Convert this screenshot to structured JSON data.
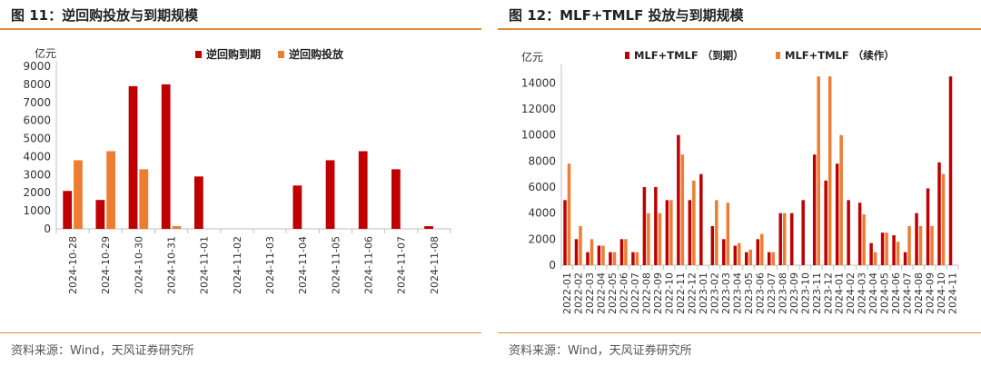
{
  "colors": {
    "dark_red": "#c00000",
    "orange": "#ed7d31",
    "rule": "#e38b3c"
  },
  "left": {
    "title": "图 11：逆回购投放与到期规模",
    "source": "资料来源：Wind，天风证券研究所"
  },
  "right": {
    "title": "图 12：MLF+TMLF 投放与到期规模",
    "source": "资料来源：Wind，天风证券研究所"
  },
  "chart_data": [
    {
      "type": "bar",
      "ylabel": "亿元",
      "ylim": [
        0,
        9000
      ],
      "yticks": [
        0,
        1000,
        2000,
        3000,
        4000,
        5000,
        6000,
        7000,
        8000,
        9000
      ],
      "grid": false,
      "legend_position": "top",
      "categories": [
        "2024-10-28",
        "2024-10-29",
        "2024-10-30",
        "2024-10-31",
        "2024-11-01",
        "2024-11-02",
        "2024-11-03",
        "2024-11-04",
        "2024-11-05",
        "2024-11-06",
        "2024-11-07",
        "2024-11-08"
      ],
      "series": [
        {
          "name": "逆回购到期",
          "color": "#c00000",
          "values": [
            2100,
            1600,
            7900,
            8000,
            2900,
            0,
            0,
            2400,
            3800,
            4300,
            3300,
            150
          ]
        },
        {
          "name": "逆回购投放",
          "color": "#ed7d31",
          "values": [
            3800,
            4300,
            3300,
            150,
            0,
            0,
            0,
            0,
            0,
            0,
            0,
            0
          ]
        }
      ]
    },
    {
      "type": "bar",
      "ylabel": "亿元",
      "ylim": [
        0,
        15000
      ],
      "yticks": [
        0,
        2000,
        4000,
        6000,
        8000,
        10000,
        12000,
        14000
      ],
      "grid": false,
      "legend_position": "top",
      "categories": [
        "2022-01",
        "2022-02",
        "2022-03",
        "2022-04",
        "2022-05",
        "2022-06",
        "2022-07",
        "2022-08",
        "2022-09",
        "2022-10",
        "2022-11",
        "2022-12",
        "2023-01",
        "2023-02",
        "2023-03",
        "2023-04",
        "2023-05",
        "2023-06",
        "2023-07",
        "2023-08",
        "2023-09",
        "2023-10",
        "2023-11",
        "2023-12",
        "2024-01",
        "2024-02",
        "2024-03",
        "2024-04",
        "2024-05",
        "2024-06",
        "2024-07",
        "2024-08",
        "2024-09",
        "2024-10",
        "2024-11"
      ],
      "series": [
        {
          "name": "MLF+TMLF （到期）",
          "color": "#c00000",
          "values": [
            5000,
            2000,
            1000,
            1500,
            1000,
            2000,
            1000,
            6000,
            6000,
            5000,
            10000,
            5000,
            7000,
            3000,
            2000,
            1500,
            1000,
            2000,
            1000,
            4000,
            4000,
            5000,
            8500,
            6500,
            7800,
            5000,
            4800,
            1700,
            2500,
            2300,
            1000,
            4000,
            5900,
            7900,
            14500
          ]
        },
        {
          "name": "MLF+TMLF （续作）",
          "color": "#ed7d31",
          "values": [
            7800,
            3000,
            2000,
            1500,
            1000,
            2000,
            1000,
            4000,
            4000,
            5000,
            8500,
            6500,
            0,
            5000,
            4800,
            1700,
            1200,
            2400,
            1000,
            4000,
            0,
            0,
            14500,
            14500,
            10000,
            0,
            3900,
            1000,
            2500,
            1800,
            3000,
            3000,
            3000,
            7000,
            0
          ]
        }
      ]
    }
  ]
}
